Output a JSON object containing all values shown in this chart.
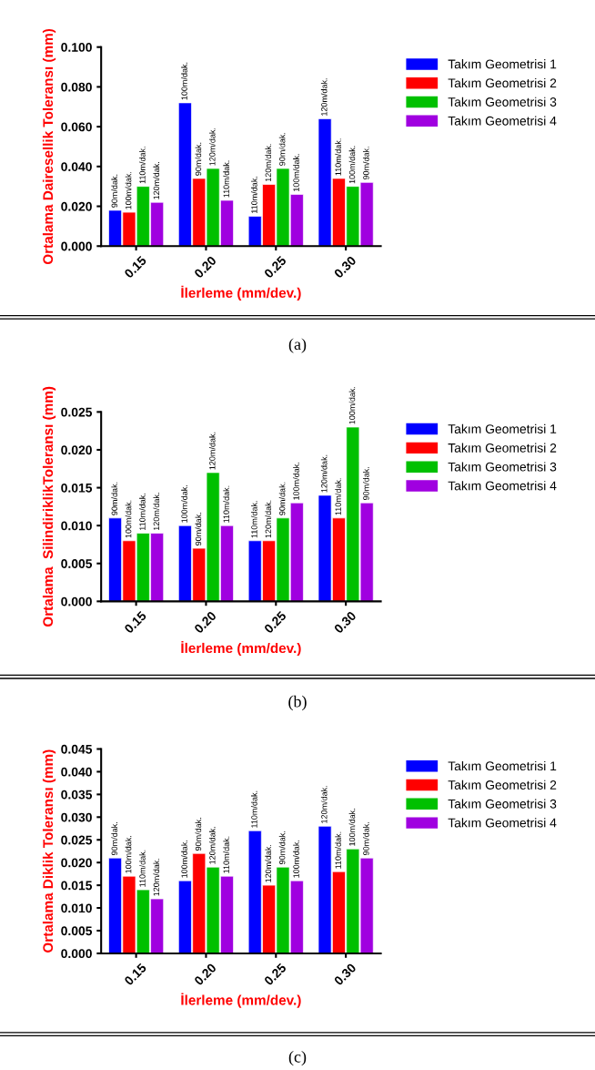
{
  "chart_data": [
    {
      "type": "bar",
      "categories": [
        "0.15",
        "0.20",
        "0.25",
        "0.30"
      ],
      "xlabel": "İlerleme (mm/dev.)",
      "ylabel": "Ortalama Dairesellik Toleransı (mm)",
      "ylim": [
        0,
        0.1
      ],
      "yticks": [
        {
          "value": 0,
          "label": "0.000"
        },
        {
          "value": 0.02,
          "label": "0.020"
        },
        {
          "value": 0.04,
          "label": "0.040"
        },
        {
          "value": 0.06,
          "label": "0.060"
        },
        {
          "value": 0.08,
          "label": "0.080"
        },
        {
          "value": 0.1,
          "label": "0.100"
        }
      ],
      "grid": false,
      "legend": "right",
      "series": [
        {
          "name": "Takım Geometrisi 1",
          "color": "#0000ff",
          "values": [
            0.018,
            0.072,
            0.015,
            0.064
          ]
        },
        {
          "name": "Takım Geometrisi 2",
          "color": "#ff0000",
          "values": [
            0.017,
            0.034,
            0.031,
            0.034
          ]
        },
        {
          "name": "Takım Geometrisi 3",
          "color": "#00c000",
          "values": [
            0.03,
            0.039,
            0.039,
            0.03
          ]
        },
        {
          "name": "Takım Geometrisi 4",
          "color": "#a000e0",
          "values": [
            0.022,
            0.023,
            0.026,
            0.032
          ]
        }
      ],
      "annotations": [
        "90m/dak.",
        "100m/dak.",
        "110m/dak.",
        "120m/dak.",
        "100m/dak.",
        "90m/dak.",
        "120m/dak.",
        "110m/dak.",
        "110m/dak.",
        "120m/dak.",
        "90m/dak.",
        "100m/dak.",
        "120m/dak.",
        "110m/dak.",
        "100m/dak.",
        "90m/dak.",
        "(a)"
      ]
    },
    {
      "type": "bar",
      "categories": [
        "0.15",
        "0.20",
        "0.25",
        "0.30"
      ],
      "xlabel": "İlerleme (mm/dev.)",
      "ylabel": "Ortalama  SilindiriklikToleransı (mm)",
      "ylim": [
        0,
        0.025
      ],
      "yticks": [
        {
          "value": 0,
          "label": "0.000"
        },
        {
          "value": 0.005,
          "label": "0.005"
        },
        {
          "value": 0.01,
          "label": "0.010"
        },
        {
          "value": 0.015,
          "label": "0.015"
        },
        {
          "value": 0.02,
          "label": "0.020"
        },
        {
          "value": 0.025,
          "label": "0.025"
        }
      ],
      "grid": false,
      "legend": "right",
      "series": [
        {
          "name": "Takım Geometrisi 1",
          "color": "#0000ff",
          "values": [
            0.011,
            0.01,
            0.008,
            0.014
          ]
        },
        {
          "name": "Takım Geometrisi 2",
          "color": "#ff0000",
          "values": [
            0.008,
            0.007,
            0.008,
            0.011
          ]
        },
        {
          "name": "Takım Geometrisi 3",
          "color": "#00c000",
          "values": [
            0.009,
            0.017,
            0.011,
            0.023
          ]
        },
        {
          "name": "Takım Geometrisi 4",
          "color": "#a000e0",
          "values": [
            0.009,
            0.01,
            0.013,
            0.013
          ]
        }
      ],
      "annotations": [
        "90m/dak.",
        "100m/dak.",
        "110m/dak.",
        "120m/dak.",
        "100m/dak.",
        "90m/dak.",
        "120m/dak.",
        "110m/dak.",
        "110m/dak.",
        "120m/dak.",
        "90m/dak.",
        "100m/dak.",
        "120m/dak.",
        "110m/dak.",
        "100m/dak.",
        "90m/dak.",
        "(b)"
      ]
    },
    {
      "type": "bar",
      "categories": [
        "0.15",
        "0.20",
        "0.25",
        "0.30"
      ],
      "xlabel": "İlerleme (mm/dev.)",
      "ylabel": "Ortalama Diklik Toleransı (mm)",
      "ylim": [
        0,
        0.045
      ],
      "yticks": [
        {
          "value": 0,
          "label": "0.000"
        },
        {
          "value": 0.005,
          "label": "0.005"
        },
        {
          "value": 0.01,
          "label": "0.010"
        },
        {
          "value": 0.015,
          "label": "0.015"
        },
        {
          "value": 0.02,
          "label": "0.020"
        },
        {
          "value": 0.025,
          "label": "0.025"
        },
        {
          "value": 0.03,
          "label": "0.030"
        },
        {
          "value": 0.035,
          "label": "0.035"
        },
        {
          "value": 0.04,
          "label": "0.040"
        },
        {
          "value": 0.045,
          "label": "0.045"
        }
      ],
      "grid": false,
      "legend": "right",
      "series": [
        {
          "name": "Takım Geometrisi 1",
          "color": "#0000ff",
          "values": [
            0.021,
            0.016,
            0.027,
            0.028
          ]
        },
        {
          "name": "Takım Geometrisi 2",
          "color": "#ff0000",
          "values": [
            0.017,
            0.022,
            0.015,
            0.018
          ]
        },
        {
          "name": "Takım Geometrisi 3",
          "color": "#00c000",
          "values": [
            0.014,
            0.019,
            0.019,
            0.023
          ]
        },
        {
          "name": "Takım Geometrisi 4",
          "color": "#a000e0",
          "values": [
            0.012,
            0.017,
            0.016,
            0.021
          ]
        }
      ],
      "annotations": [
        "90m/dak.",
        "100m/dak.",
        "110m/dak.",
        "120m/dak.",
        "100m/dak.",
        "90m/dak.",
        "120m/dak.",
        "110m/dak.",
        "110m/dak.",
        "120m/dak.",
        "90m/dak.",
        "100m/dak.",
        "120m/dak.",
        "110m/dak.",
        "100m/dak.",
        "90m/dak.",
        "(c)"
      ]
    }
  ]
}
